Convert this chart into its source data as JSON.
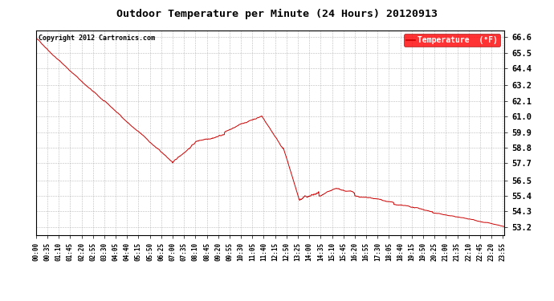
{
  "title": "Outdoor Temperature per Minute (24 Hours) 20120913",
  "copyright_text": "Copyright 2012 Cartronics.com",
  "legend_label": "Temperature  (°F)",
  "line_color": "#cc0000",
  "background_color": "#ffffff",
  "grid_color": "#aaaaaa",
  "ylim": [
    52.65,
    67.1
  ],
  "yticks": [
    53.2,
    54.3,
    55.4,
    56.5,
    57.7,
    58.8,
    59.9,
    61.0,
    62.1,
    63.2,
    64.4,
    65.5,
    66.6
  ],
  "xtick_labels": [
    "00:00",
    "00:35",
    "01:10",
    "01:45",
    "02:20",
    "02:55",
    "03:30",
    "04:05",
    "04:40",
    "05:15",
    "05:50",
    "06:25",
    "07:00",
    "07:35",
    "08:10",
    "08:45",
    "09:20",
    "09:55",
    "10:30",
    "11:05",
    "11:40",
    "12:15",
    "12:50",
    "13:25",
    "14:00",
    "14:35",
    "15:10",
    "15:45",
    "16:20",
    "16:55",
    "17:30",
    "18:05",
    "18:40",
    "19:15",
    "19:50",
    "20:25",
    "21:00",
    "21:35",
    "22:10",
    "22:45",
    "23:20",
    "23:55"
  ],
  "num_points": 1440
}
